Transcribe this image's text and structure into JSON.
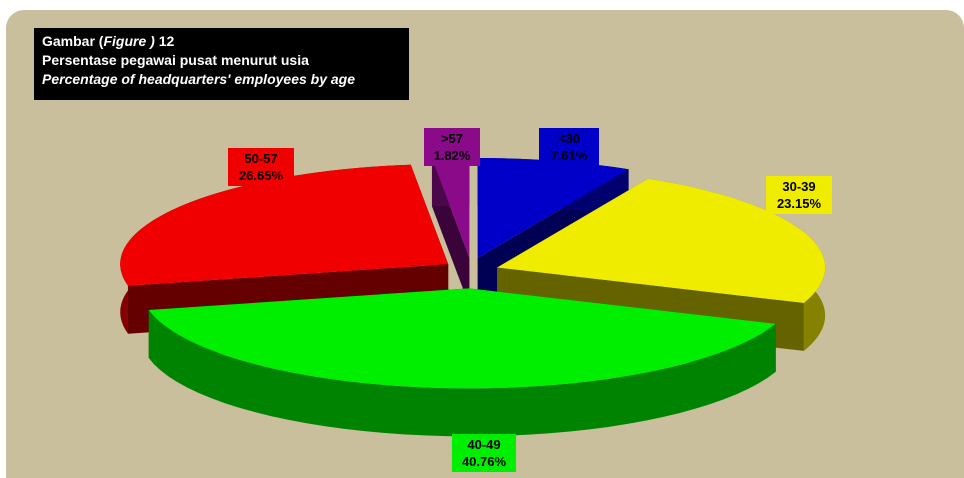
{
  "title": {
    "line1_prefix": "Gambar (",
    "line1_figure": "Figure )",
    "line1_number": " 12",
    "line2": "Persentase pegawai pusat menurut usia",
    "line3": "Percentage of headquarters' employees by age"
  },
  "chart_data": {
    "type": "pie",
    "title": "Persentase pegawai pusat menurut usia / Percentage of headquarters' employees by age",
    "slices": [
      {
        "label": "<30",
        "value": 7.61,
        "display": "7.61%",
        "color": "#0000c8"
      },
      {
        "label": "30-39",
        "value": 23.15,
        "display": "23.15%",
        "color": "#f0ec00"
      },
      {
        "label": "40-49",
        "value": 40.76,
        "display": "40.76%",
        "color": "#00ee00"
      },
      {
        "label": "50-57",
        "value": 26.65,
        "display": "26.65%",
        "color": "#f00000"
      },
      {
        "label": ">57",
        "value": 1.82,
        "display": "1.82%",
        "color": "#8a0a8a"
      }
    ]
  },
  "colors": {
    "background": "#c9bf9c"
  }
}
